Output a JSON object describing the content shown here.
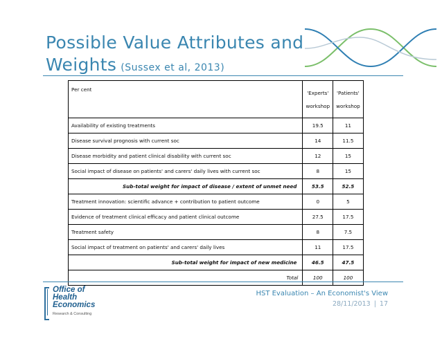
{
  "title": {
    "main_line1": "Possible Value Attributes and",
    "main_line2": "Weights",
    "citation": "(Sussex et al, 2013)"
  },
  "table": {
    "header": {
      "label": "Per cent",
      "col1_line1": "'Experts'",
      "col1_line2": "workshop",
      "col2_line1": "'Patients'",
      "col2_line2": "workshop"
    },
    "rows": [
      {
        "label": "Availability of existing treatments",
        "experts": "19.5",
        "patients": "11"
      },
      {
        "label": "Disease survival prognosis with current soc",
        "experts": "14",
        "patients": "11.5"
      },
      {
        "label": "Disease morbidity and patient clinical disability with current soc",
        "experts": "12",
        "patients": "15"
      },
      {
        "label": "Social impact of disease on patients' and carers' daily lives with current soc",
        "experts": "8",
        "patients": "15"
      },
      {
        "label": "Sub-total weight for impact of disease / extent of unmet need",
        "experts": "53.5",
        "patients": "52.5"
      },
      {
        "label": "Treatment innovation: scientific advance + contribution to patient outcome",
        "experts": "0",
        "patients": "5"
      },
      {
        "label": "Evidence of treatment clinical efficacy and patient clinical outcome",
        "experts": "27.5",
        "patients": "17.5"
      },
      {
        "label": "Treatment safety",
        "experts": "8",
        "patients": "7.5"
      },
      {
        "label": "Social impact of treatment on patients' and carers' daily lives",
        "experts": "11",
        "patients": "17.5"
      },
      {
        "label": "Sub-total weight for impact of new medicine",
        "experts": "46.5",
        "patients": "47.5"
      },
      {
        "label": "Total",
        "experts": "100",
        "patients": "100"
      }
    ]
  },
  "logo": {
    "line1": "Office of",
    "line2": "Health",
    "line3": "Economics",
    "tagline": "Research & Consulting"
  },
  "footer": {
    "presentation_title": "HST Evaluation – An Economist's View",
    "date": "28/11/2013",
    "separator": "|",
    "page_number": "17"
  },
  "colors": {
    "title_blue": "#3a86b0",
    "wave_blue": "#2f7fb3",
    "wave_green": "#7bbf6a",
    "wave_grey": "#b9cad6"
  }
}
